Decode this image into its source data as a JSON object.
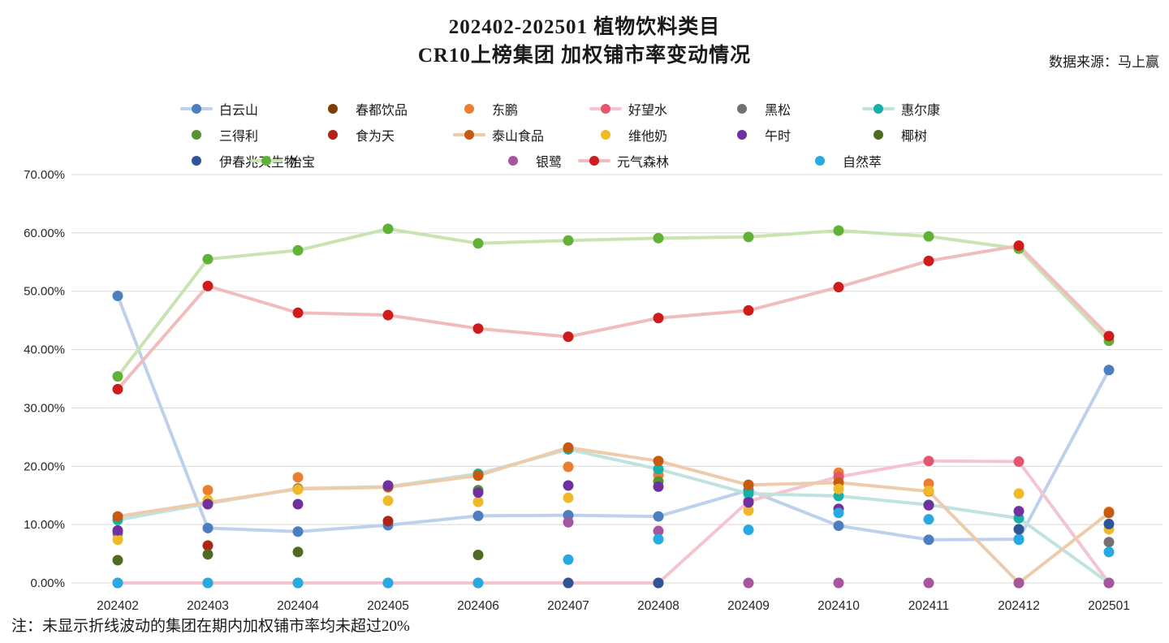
{
  "title": {
    "line1": "202402-202501 植物饮料类目",
    "line2": "CR10上榜集团 加权铺市率变动情况"
  },
  "source": "数据来源：马上赢",
  "footnote": "注：未显示折线波动的集团在期内加权铺市率均未超过20%",
  "chart_data": {
    "type": "line",
    "title": "202402-202501 植物饮料类目 CR10上榜集团 加权铺市率变动情况",
    "xlabel": "",
    "ylabel": "加权铺市率",
    "x": [
      "202402",
      "202403",
      "202404",
      "202405",
      "202406",
      "202407",
      "202408",
      "202409",
      "202410",
      "202411",
      "202412",
      "202501"
    ],
    "ylim": [
      0,
      70
    ],
    "y_tick_labels": [
      "0.00%",
      "10.00%",
      "20.00%",
      "30.00%",
      "40.00%",
      "50.00%",
      "60.00%",
      "70.00%"
    ],
    "grid": true,
    "legend_position": "top",
    "series": [
      {
        "name": "白云山",
        "row": 1,
        "line": true,
        "color": "#4D7EBF",
        "line_color": "#BDD1EC",
        "values": [
          49.2,
          9.4,
          8.8,
          9.9,
          11.5,
          11.6,
          11.4,
          15.9,
          9.8,
          7.4,
          7.5,
          36.5
        ]
      },
      {
        "name": "春都饮品",
        "row": 1,
        "line": false,
        "color": "#7B3F04",
        "values": [
          null,
          null,
          null,
          null,
          null,
          null,
          null,
          null,
          null,
          null,
          null,
          null
        ]
      },
      {
        "name": "东鹏",
        "row": 1,
        "line": false,
        "color": "#ED7D31",
        "values": [
          null,
          15.9,
          18.1,
          null,
          18.4,
          19.9,
          18.5,
          16.8,
          18.9,
          17.0,
          null,
          12.2
        ]
      },
      {
        "name": "好望水",
        "row": 1,
        "line": true,
        "color": "#E4566E",
        "line_color": "#F4C5CE",
        "values": [
          0,
          0,
          0,
          0,
          0,
          0,
          0,
          14.0,
          18.2,
          20.9,
          20.8,
          0
        ]
      },
      {
        "name": "黑松",
        "row": 1,
        "line": false,
        "color": "#767171",
        "values": [
          8.5,
          null,
          null,
          null,
          null,
          null,
          null,
          null,
          null,
          null,
          null,
          7.0
        ]
      },
      {
        "name": "惠尔康",
        "row": 1,
        "line": true,
        "color": "#17B0A6",
        "line_color": "#BFE3DF",
        "values": [
          10.8,
          13.6,
          16.2,
          16.5,
          18.7,
          22.9,
          19.5,
          15.3,
          14.9,
          13.4,
          11.1,
          0
        ]
      },
      {
        "name": "三得利",
        "row": 2,
        "line": false,
        "color": "#54932F",
        "values": [
          null,
          null,
          null,
          null,
          15.9,
          null,
          17.4,
          null,
          null,
          null,
          null,
          null
        ]
      },
      {
        "name": "食为天",
        "row": 2,
        "line": false,
        "color": "#B02418",
        "values": [
          null,
          6.4,
          null,
          10.6,
          null,
          null,
          null,
          null,
          null,
          null,
          null,
          null
        ]
      },
      {
        "name": "泰山食品",
        "row": 2,
        "line": true,
        "color": "#C55A11",
        "line_color": "#EDCBAB",
        "values": [
          11.4,
          13.8,
          16.1,
          16.4,
          18.4,
          23.2,
          20.9,
          16.8,
          17.2,
          15.7,
          0,
          12.0
        ]
      },
      {
        "name": "维他奶",
        "row": 2,
        "line": false,
        "color": "#F0B929",
        "values": [
          7.4,
          14.2,
          16.0,
          14.1,
          13.9,
          14.6,
          null,
          12.4,
          16.1,
          15.8,
          15.3,
          9.2
        ]
      },
      {
        "name": "午时",
        "row": 2,
        "line": false,
        "color": "#7030A0",
        "values": [
          9.0,
          13.5,
          13.5,
          16.7,
          15.5,
          16.7,
          16.5,
          13.8,
          12.7,
          13.3,
          12.3,
          null
        ]
      },
      {
        "name": "椰树",
        "row": 2,
        "line": false,
        "color": "#4F6B22",
        "values": [
          3.9,
          4.9,
          5.3,
          null,
          4.8,
          null,
          null,
          null,
          null,
          null,
          null,
          null
        ]
      },
      {
        "name": "伊春兆天生物",
        "row": 3,
        "line": false,
        "color": "#2E5597",
        "values": [
          null,
          null,
          null,
          null,
          null,
          0,
          0,
          null,
          null,
          null,
          9.2,
          10.1
        ]
      },
      {
        "name": "怡宝",
        "row": 3,
        "line": true,
        "color": "#5FB236",
        "line_color": "#C8E4B2",
        "values": [
          35.4,
          55.5,
          57.0,
          60.7,
          58.2,
          58.7,
          59.1,
          59.3,
          60.4,
          59.4,
          57.3,
          41.5
        ]
      },
      {
        "name": "银鹭",
        "row": 3,
        "line": false,
        "color": "#A855A0",
        "values": [
          null,
          null,
          null,
          null,
          null,
          10.4,
          8.9,
          0,
          0,
          0,
          0,
          0
        ]
      },
      {
        "name": "元气森林",
        "row": 3,
        "line": true,
        "color": "#CE1C1C",
        "line_color": "#F0BCBC",
        "values": [
          33.2,
          50.9,
          46.3,
          45.9,
          43.6,
          42.2,
          45.4,
          46.7,
          50.7,
          55.2,
          57.8,
          42.3
        ]
      },
      {
        "name": "自然萃",
        "row": 3,
        "line": false,
        "color": "#27A9E1",
        "values": [
          0,
          0,
          0,
          0,
          0,
          4.0,
          7.5,
          9.1,
          12.0,
          10.9,
          7.4,
          5.3
        ]
      }
    ]
  }
}
